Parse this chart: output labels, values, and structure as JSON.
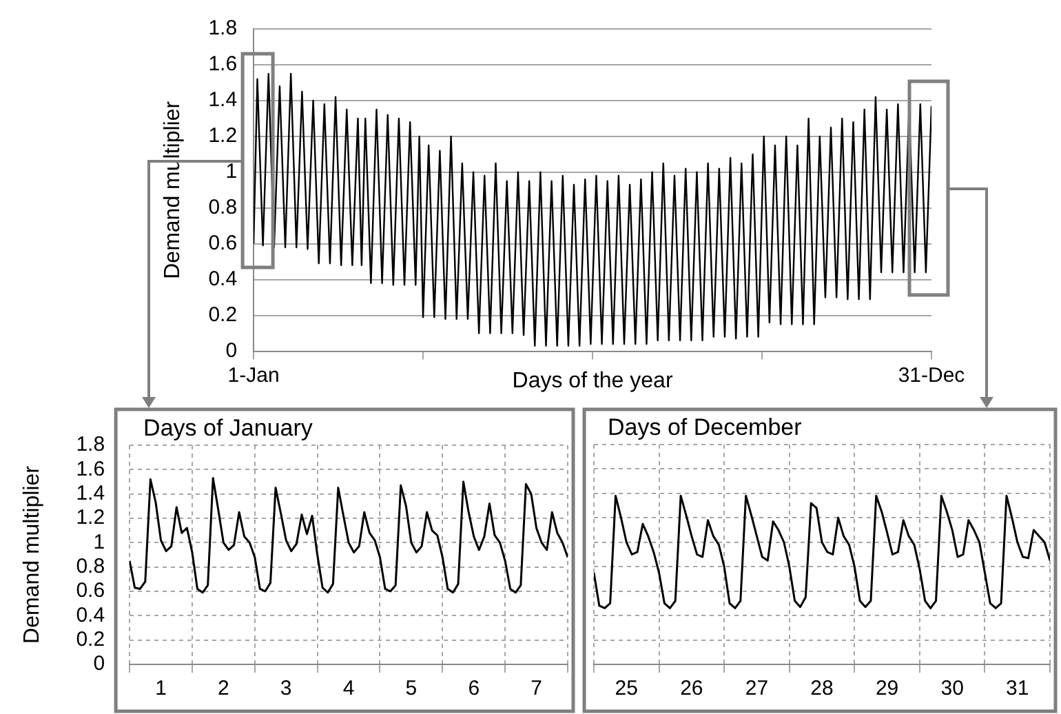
{
  "chart_data": [
    {
      "type": "line",
      "xlabel": "Days of the year",
      "ylabel": "Demand multiplier",
      "grid": "y",
      "xlim": [
        "--01-01",
        "--12-31"
      ],
      "xticks": [
        {
          "value": "--01-01",
          "label": "1-Jan"
        },
        {
          "value": "--04-02",
          "label": null
        },
        {
          "value": "--07-02",
          "label": null
        },
        {
          "value": "--10-01",
          "label": null
        },
        {
          "value": "--12-31",
          "label": "31-Dec"
        }
      ],
      "ylim": [
        0,
        1.8
      ],
      "yticks": [
        0,
        0.2,
        0.4,
        0.6,
        0.8,
        1,
        1.2,
        1.4,
        1.6,
        1.8
      ],
      "x": [
        "--01-01",
        "--01-03",
        "--01-06",
        "--01-09",
        "--01-12",
        "--01-15",
        "--01-18",
        "--01-21",
        "--01-24",
        "--01-27",
        "--01-30",
        "--02-02",
        "--02-05",
        "--02-08",
        "--02-11",
        "--02-14",
        "--02-17",
        "--02-20",
        "--02-23",
        "--02-26",
        "--02-28",
        "--03-02",
        "--03-05",
        "--03-08",
        "--03-11",
        "--03-14",
        "--03-17",
        "--03-20",
        "--03-23",
        "--03-26",
        "--03-29",
        "--03-31",
        "--04-02",
        "--04-05",
        "--04-08",
        "--04-11",
        "--04-14",
        "--04-17",
        "--04-20",
        "--04-23",
        "--04-26",
        "--04-29",
        "--05-02",
        "--05-05",
        "--05-08",
        "--05-11",
        "--05-14",
        "--05-17",
        "--05-20",
        "--05-23",
        "--05-26",
        "--05-29",
        "--06-01",
        "--06-04",
        "--06-07",
        "--06-10",
        "--06-13",
        "--06-16",
        "--06-19",
        "--06-22",
        "--06-25",
        "--06-28",
        "--07-01",
        "--07-04",
        "--07-07",
        "--07-10",
        "--07-13",
        "--07-16",
        "--07-19",
        "--07-22",
        "--07-25",
        "--07-28",
        "--07-31",
        "--08-03",
        "--08-06",
        "--08-09",
        "--08-12",
        "--08-15",
        "--08-18",
        "--08-21",
        "--08-24",
        "--08-27",
        "--08-30",
        "--09-02",
        "--09-05",
        "--09-08",
        "--09-11",
        "--09-14",
        "--09-17",
        "--09-20",
        "--09-23",
        "--09-26",
        "--09-29",
        "--10-02",
        "--10-05",
        "--10-08",
        "--10-11",
        "--10-14",
        "--10-17",
        "--10-20",
        "--10-23",
        "--10-26",
        "--10-29",
        "--11-01",
        "--11-04",
        "--11-07",
        "--11-10",
        "--11-13",
        "--11-16",
        "--11-19",
        "--11-22",
        "--11-25",
        "--11-28",
        "--12-01",
        "--12-04",
        "--12-07",
        "--12-10",
        "--12-13",
        "--12-16",
        "--12-19",
        "--12-22",
        "--12-25",
        "--12-28",
        "--12-31"
      ],
      "series": [
        {
          "color": "#000000",
          "values": [
            0.6,
            1.52,
            0.59,
            1.55,
            0.58,
            1.48,
            0.58,
            1.55,
            0.58,
            1.45,
            0.57,
            1.4,
            0.49,
            1.38,
            0.49,
            1.42,
            0.48,
            1.35,
            0.48,
            1.3,
            0.48,
            1.3,
            0.38,
            1.35,
            0.38,
            1.32,
            0.37,
            1.3,
            0.37,
            1.28,
            0.37,
            1.2,
            0.19,
            1.15,
            0.19,
            1.12,
            0.18,
            1.2,
            0.18,
            1.05,
            0.18,
            1.0,
            0.1,
            0.98,
            0.1,
            1.05,
            0.1,
            0.95,
            0.1,
            1.0,
            0.09,
            0.95,
            0.03,
            1.0,
            0.03,
            0.95,
            0.03,
            0.98,
            0.03,
            0.93,
            0.03,
            0.96,
            0.04,
            0.98,
            0.04,
            0.95,
            0.04,
            0.98,
            0.04,
            0.93,
            0.04,
            0.96,
            0.04,
            1.0,
            0.06,
            1.05,
            0.06,
            0.98,
            0.06,
            1.02,
            0.06,
            1.0,
            0.06,
            1.05,
            0.08,
            1.02,
            0.08,
            1.08,
            0.07,
            1.05,
            0.08,
            1.1,
            0.08,
            1.2,
            0.16,
            1.15,
            0.15,
            1.2,
            0.15,
            1.15,
            0.15,
            1.3,
            0.15,
            1.2,
            0.3,
            1.25,
            0.3,
            1.3,
            0.29,
            1.28,
            0.29,
            1.35,
            0.29,
            1.42,
            0.44,
            1.35,
            0.44,
            1.38,
            0.44,
            1.36,
            0.44,
            1.38,
            0.44,
            1.37
          ]
        }
      ]
    },
    {
      "type": "line",
      "title": "Days of January",
      "ylabel": "Demand multiplier",
      "grid": true,
      "xlim": [
        0.5,
        7.5
      ],
      "xticks": [
        {
          "value": 0.5,
          "label": null
        },
        1,
        {
          "value": 1.5,
          "label": null
        },
        2,
        {
          "value": 2.5,
          "label": null
        },
        3,
        {
          "value": 3.5,
          "label": null
        },
        4,
        {
          "value": 4.5,
          "label": null
        },
        5,
        {
          "value": 5.5,
          "label": null
        },
        6,
        {
          "value": 6.5,
          "label": null
        },
        7,
        {
          "value": 7.5,
          "label": null
        }
      ],
      "ylim": [
        0,
        1.8
      ],
      "yticks": [
        0,
        0.2,
        0.4,
        0.6,
        0.8,
        1,
        1.2,
        1.4,
        1.6,
        1.8
      ],
      "x": [
        0.5,
        0.583,
        0.667,
        0.75,
        0.833,
        0.917,
        1,
        1.083,
        1.167,
        1.25,
        1.333,
        1.417,
        1.5,
        1.583,
        1.667,
        1.75,
        1.833,
        1.917,
        2,
        2.083,
        2.167,
        2.25,
        2.333,
        2.417,
        2.5,
        2.583,
        2.667,
        2.75,
        2.833,
        2.917,
        3,
        3.083,
        3.167,
        3.25,
        3.333,
        3.417,
        3.5,
        3.583,
        3.667,
        3.75,
        3.833,
        3.917,
        4,
        4.083,
        4.167,
        4.25,
        4.333,
        4.417,
        4.5,
        4.583,
        4.667,
        4.75,
        4.833,
        4.917,
        5,
        5.083,
        5.167,
        5.25,
        5.333,
        5.417,
        5.5,
        5.583,
        5.667,
        5.75,
        5.833,
        5.917,
        6,
        6.083,
        6.167,
        6.25,
        6.333,
        6.417,
        6.5,
        6.583,
        6.667,
        6.75,
        6.833,
        6.917,
        7,
        7.083,
        7.167,
        7.25,
        7.333,
        7.417,
        7.5
      ],
      "series": [
        {
          "color": "#000000",
          "values": [
            0.85,
            0.63,
            0.62,
            0.68,
            1.52,
            1.33,
            1.02,
            0.93,
            0.97,
            1.29,
            1.08,
            1.12,
            0.92,
            0.62,
            0.59,
            0.65,
            1.53,
            1.27,
            1.0,
            0.94,
            0.98,
            1.25,
            1.05,
            1.0,
            0.88,
            0.62,
            0.6,
            0.67,
            1.45,
            1.24,
            1.02,
            0.93,
            0.99,
            1.23,
            1.07,
            1.22,
            0.9,
            0.63,
            0.59,
            0.66,
            1.45,
            1.22,
            1.0,
            0.92,
            0.97,
            1.25,
            1.08,
            1.02,
            0.88,
            0.62,
            0.6,
            0.65,
            1.47,
            1.3,
            1.0,
            0.92,
            0.97,
            1.25,
            1.1,
            1.06,
            0.88,
            0.62,
            0.59,
            0.66,
            1.5,
            1.25,
            1.05,
            0.94,
            1.05,
            1.32,
            1.06,
            1.0,
            0.85,
            0.62,
            0.59,
            0.65,
            1.48,
            1.4,
            1.12,
            1.0,
            0.94,
            1.25,
            1.08,
            1.0,
            0.88
          ]
        }
      ]
    },
    {
      "type": "line",
      "title": "Days of December",
      "grid": true,
      "tick_labels": "x",
      "xlim": [
        24.5,
        31.5
      ],
      "xticks": [
        {
          "value": 24.5,
          "label": null
        },
        25,
        {
          "value": 25.5,
          "label": null
        },
        26,
        {
          "value": 26.5,
          "label": null
        },
        27,
        {
          "value": 27.5,
          "label": null
        },
        28,
        {
          "value": 28.5,
          "label": null
        },
        29,
        {
          "value": 29.5,
          "label": null
        },
        30,
        {
          "value": 30.5,
          "label": null
        },
        31,
        {
          "value": 31.5,
          "label": null
        }
      ],
      "ylim": [
        0,
        1.8
      ],
      "yticks": [
        0,
        0.2,
        0.4,
        0.6,
        0.8,
        1,
        1.2,
        1.4,
        1.6,
        1.8
      ],
      "x": [
        24.5,
        24.583,
        24.667,
        24.75,
        24.833,
        24.917,
        25,
        25.083,
        25.167,
        25.25,
        25.333,
        25.417,
        25.5,
        25.583,
        25.667,
        25.75,
        25.833,
        25.917,
        26,
        26.083,
        26.167,
        26.25,
        26.333,
        26.417,
        26.5,
        26.583,
        26.667,
        26.75,
        26.833,
        26.917,
        27,
        27.083,
        27.167,
        27.25,
        27.333,
        27.417,
        27.5,
        27.583,
        27.667,
        27.75,
        27.833,
        27.917,
        28,
        28.083,
        28.167,
        28.25,
        28.333,
        28.417,
        28.5,
        28.583,
        28.667,
        28.75,
        28.833,
        28.917,
        29,
        29.083,
        29.167,
        29.25,
        29.333,
        29.417,
        29.5,
        29.583,
        29.667,
        29.75,
        29.833,
        29.917,
        30,
        30.083,
        30.167,
        30.25,
        30.333,
        30.417,
        30.5,
        30.583,
        30.667,
        30.75,
        30.833,
        30.917,
        31,
        31.083,
        31.167,
        31.25,
        31.333,
        31.417,
        31.5
      ],
      "series": [
        {
          "color": "#000000",
          "values": [
            0.75,
            0.48,
            0.46,
            0.5,
            1.38,
            1.2,
            1.0,
            0.9,
            0.92,
            1.15,
            1.05,
            0.92,
            0.75,
            0.5,
            0.46,
            0.52,
            1.38,
            1.22,
            1.05,
            0.9,
            0.88,
            1.18,
            1.05,
            0.98,
            0.8,
            0.5,
            0.46,
            0.52,
            1.38,
            1.22,
            1.05,
            0.88,
            0.85,
            1.17,
            1.1,
            1.0,
            0.8,
            0.52,
            0.47,
            0.55,
            1.32,
            1.28,
            1.0,
            0.92,
            0.9,
            1.2,
            1.05,
            0.98,
            0.8,
            0.52,
            0.47,
            0.52,
            1.38,
            1.25,
            1.08,
            0.9,
            0.92,
            1.18,
            1.05,
            0.98,
            0.78,
            0.52,
            0.46,
            0.52,
            1.38,
            1.25,
            1.1,
            0.88,
            0.9,
            1.18,
            1.1,
            1.0,
            0.75,
            0.5,
            0.46,
            0.5,
            1.38,
            1.2,
            1.0,
            0.88,
            0.87,
            1.1,
            1.05,
            1.0,
            0.85
          ]
        }
      ]
    }
  ]
}
